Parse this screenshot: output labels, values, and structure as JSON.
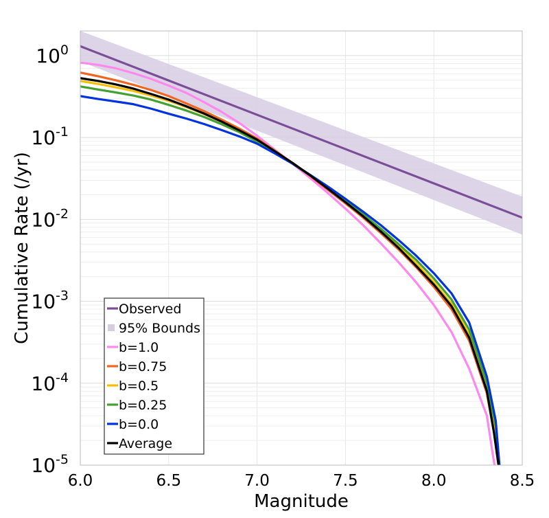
{
  "chart_data": {
    "type": "line",
    "title": "",
    "xlabel": "Magnitude",
    "ylabel": "Cumulative Rate (/yr)",
    "xlim": [
      6.0,
      8.5
    ],
    "ylim": [
      1e-05,
      2
    ],
    "y_scale": "log",
    "grid": true,
    "legend_position": "bottom-left",
    "x_ticks": [
      "6.0",
      "6.5",
      "7.0",
      "7.5",
      "8.0",
      "8.5"
    ],
    "y_ticks": [
      {
        "base": "10",
        "exp": "0",
        "value": 1
      },
      {
        "base": "10",
        "exp": "-1",
        "value": 0.1
      },
      {
        "base": "10",
        "exp": "-2",
        "value": 0.01
      },
      {
        "base": "10",
        "exp": "-3",
        "value": 0.001
      },
      {
        "base": "10",
        "exp": "-4",
        "value": 0.0001
      },
      {
        "base": "10",
        "exp": "-5",
        "value": 1e-05
      }
    ],
    "bounds": {
      "name": "95% Bounds",
      "color": "#d8cce3",
      "x": [
        6.0,
        8.5
      ],
      "upper": [
        2.0,
        0.019
      ],
      "lower": [
        0.85,
        0.0065
      ]
    },
    "series": [
      {
        "name": "Observed",
        "color": "#7b4e98",
        "x": [
          6.0,
          8.5
        ],
        "y": [
          1.3,
          0.0105
        ]
      },
      {
        "name": "b=1.0",
        "color": "#ff88ee",
        "x": [
          6.0,
          6.1,
          6.2,
          6.3,
          6.4,
          6.5,
          6.6,
          6.7,
          6.8,
          6.9,
          7.0,
          7.1,
          7.2,
          7.3,
          7.4,
          7.5,
          7.6,
          7.7,
          7.8,
          7.9,
          8.0,
          8.1,
          8.2,
          8.3,
          8.33,
          8.36
        ],
        "y": [
          0.82,
          0.77,
          0.7,
          0.61,
          0.52,
          0.43,
          0.35,
          0.27,
          0.205,
          0.15,
          0.105,
          0.071,
          0.048,
          0.032,
          0.021,
          0.0135,
          0.0085,
          0.0051,
          0.003,
          0.0017,
          0.0009,
          0.00042,
          0.00015,
          4e-05,
          1.5e-05,
          6e-06
        ]
      },
      {
        "name": "b=0.75",
        "color": "#ee6622",
        "x": [
          6.0,
          6.1,
          6.2,
          6.3,
          6.4,
          6.5,
          6.6,
          6.7,
          6.8,
          6.9,
          7.0,
          7.1,
          7.2,
          7.3,
          7.4,
          7.5,
          7.6,
          7.7,
          7.8,
          7.9,
          8.0,
          8.1,
          8.2,
          8.3,
          8.34,
          8.38
        ],
        "y": [
          0.62,
          0.56,
          0.5,
          0.44,
          0.38,
          0.32,
          0.26,
          0.21,
          0.165,
          0.128,
          0.097,
          0.069,
          0.049,
          0.034,
          0.023,
          0.0157,
          0.0105,
          0.0068,
          0.0043,
          0.0026,
          0.0015,
          0.0008,
          0.00033,
          7.5e-05,
          2.5e-05,
          6e-06
        ]
      },
      {
        "name": "b=0.5",
        "color": "#f2c000",
        "x": [
          6.0,
          6.1,
          6.2,
          6.3,
          6.4,
          6.5,
          6.6,
          6.7,
          6.8,
          6.9,
          7.0,
          7.1,
          7.2,
          7.3,
          7.4,
          7.5,
          7.6,
          7.7,
          7.8,
          7.9,
          8.0,
          8.1,
          8.2,
          8.3,
          8.34,
          8.38
        ],
        "y": [
          0.49,
          0.45,
          0.41,
          0.37,
          0.325,
          0.28,
          0.235,
          0.193,
          0.155,
          0.122,
          0.093,
          0.068,
          0.049,
          0.0345,
          0.0238,
          0.0163,
          0.011,
          0.0073,
          0.0047,
          0.0029,
          0.0017,
          0.00093,
          0.00039,
          9e-05,
          3e-05,
          6e-06
        ]
      },
      {
        "name": "b=0.25",
        "color": "#44a032",
        "x": [
          6.0,
          6.1,
          6.2,
          6.3,
          6.4,
          6.5,
          6.6,
          6.7,
          6.8,
          6.9,
          7.0,
          7.1,
          7.2,
          7.3,
          7.4,
          7.5,
          7.6,
          7.7,
          7.8,
          7.9,
          8.0,
          8.1,
          8.2,
          8.3,
          8.35,
          8.38
        ],
        "y": [
          0.42,
          0.385,
          0.355,
          0.325,
          0.29,
          0.25,
          0.213,
          0.178,
          0.145,
          0.116,
          0.089,
          0.066,
          0.048,
          0.0345,
          0.024,
          0.0168,
          0.0115,
          0.0077,
          0.005,
          0.0032,
          0.0019,
          0.00105,
          0.00045,
          0.0001,
          3e-05,
          6e-06
        ]
      },
      {
        "name": "b=0.0",
        "color": "#0033dd",
        "x": [
          6.0,
          6.1,
          6.2,
          6.3,
          6.4,
          6.5,
          6.6,
          6.7,
          6.8,
          6.9,
          7.0,
          7.1,
          7.2,
          7.3,
          7.4,
          7.5,
          7.6,
          7.7,
          7.8,
          7.9,
          8.0,
          8.1,
          8.2,
          8.3,
          8.35,
          8.38
        ],
        "y": [
          0.32,
          0.295,
          0.275,
          0.255,
          0.225,
          0.195,
          0.17,
          0.146,
          0.123,
          0.103,
          0.084,
          0.064,
          0.048,
          0.035,
          0.0252,
          0.0178,
          0.0124,
          0.0085,
          0.0056,
          0.0036,
          0.0022,
          0.00125,
          0.00055,
          0.00012,
          3.5e-05,
          6e-06
        ]
      },
      {
        "name": "Average",
        "color": "#000000",
        "x": [
          6.0,
          6.1,
          6.2,
          6.3,
          6.4,
          6.5,
          6.6,
          6.7,
          6.8,
          6.9,
          7.0,
          7.1,
          7.2,
          7.3,
          7.4,
          7.5,
          7.6,
          7.7,
          7.8,
          7.9,
          8.0,
          8.1,
          8.2,
          8.3,
          8.34,
          8.38
        ],
        "y": [
          0.53,
          0.49,
          0.445,
          0.395,
          0.34,
          0.29,
          0.24,
          0.196,
          0.156,
          0.122,
          0.094,
          0.068,
          0.049,
          0.0345,
          0.0237,
          0.0162,
          0.0109,
          0.0071,
          0.0045,
          0.0027,
          0.0016,
          0.00087,
          0.00036,
          8e-05,
          2.5e-05,
          6e-06
        ]
      }
    ],
    "legend": [
      {
        "label": "Observed",
        "kind": "line",
        "color": "#7b4e98"
      },
      {
        "label": "95% Bounds",
        "kind": "box",
        "color": "#d8cce3"
      },
      {
        "label": "b=1.0",
        "kind": "line",
        "color": "#ff88ee"
      },
      {
        "label": "b=0.75",
        "kind": "line",
        "color": "#ee6622"
      },
      {
        "label": "b=0.5",
        "kind": "line",
        "color": "#f2c000"
      },
      {
        "label": "b=0.25",
        "kind": "line",
        "color": "#44a032"
      },
      {
        "label": "b=0.0",
        "kind": "line",
        "color": "#0033dd"
      },
      {
        "label": "Average",
        "kind": "line",
        "color": "#000000"
      }
    ]
  }
}
